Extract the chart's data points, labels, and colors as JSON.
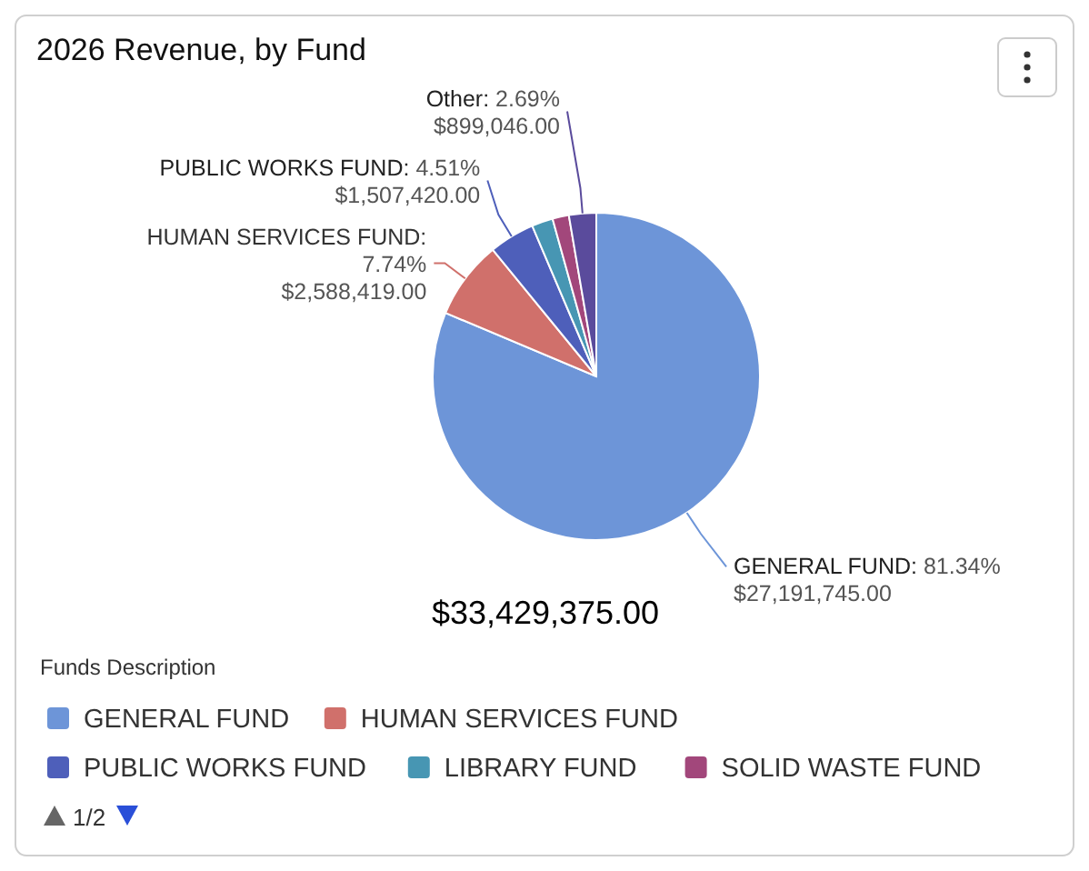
{
  "chart_data": {
    "type": "pie",
    "title": "2026 Revenue, by Fund",
    "legend_title": "Funds Description",
    "legend": "bottom",
    "categories": [
      "GENERAL FUND",
      "HUMAN SERVICES FUND",
      "PUBLIC WORKS FUND",
      "LIBRARY FUND",
      "SOLID WASTE FUND",
      null
    ],
    "values": [
      27191745,
      2588419,
      1507420,
      700000,
      542745,
      899046
    ],
    "colors": [
      "#6d95d8",
      "#d0706b",
      "#4e5fba",
      "#4796b3",
      "#a2477b",
      "#5a4b9c"
    ],
    "value_labels": [
      "GENERAL FUND: 81.34%\n$27,191,745.00",
      "HUMAN SERVICES FUND: 7.74%\n$2,588,419.00",
      "PUBLIC WORKS FUND: 4.51%\n$1,507,420.00",
      null,
      null,
      "Other: 2.69%\n$899,046.00"
    ],
    "annotations": [
      "$33,429,375.00",
      "1/2"
    ]
  }
}
